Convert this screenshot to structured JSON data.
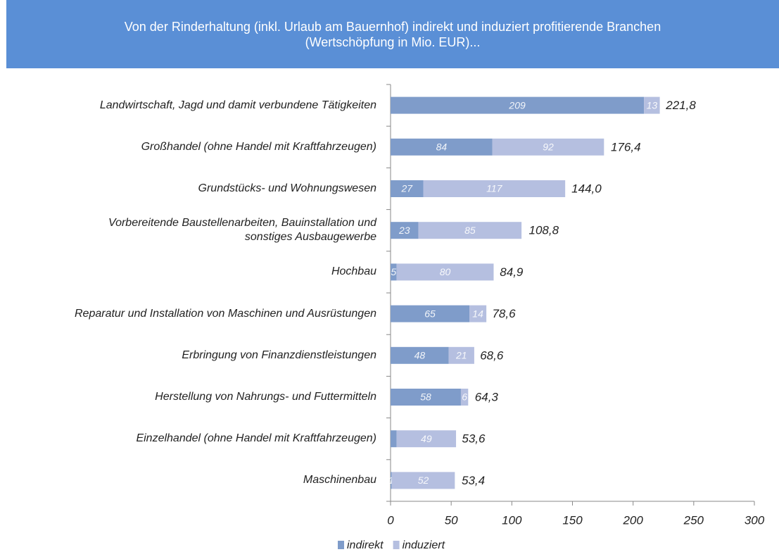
{
  "chart_data": {
    "type": "stacked_hbar",
    "title": "Von der Rinderhaltung (inkl. Urlaub am Bauernhof) indirekt und induziert profitierende Branchen\n(Wertschöpfung in Mio. EUR)...",
    "categories": [
      "Landwirtschaft, Jagd und damit verbundene Tätigkeiten",
      "Großhandel (ohne Handel mit Kraftfahrzeugen)",
      "Grundstücks- und Wohnungswesen",
      "Vorbereitende Baustellenarbeiten, Bauinstallation und\nsonstiges Ausbaugewerbe",
      "Hochbau",
      "Reparatur und Installation von Maschinen und Ausrüstungen",
      "Erbringung von Finanzdienstleistungen",
      "Herstellung von Nahrungs- und Futtermitteln",
      "Einzelhandel (ohne Handel mit Kraftfahrzeugen)",
      "Maschinenbau"
    ],
    "series": [
      {
        "name": "indirekt",
        "color": "#7f9cca",
        "values": [
          209,
          84,
          27,
          23,
          5,
          65,
          48,
          58,
          5,
          1
        ],
        "value_labels": [
          "209",
          "84",
          "27",
          "23",
          "5",
          "65",
          "48",
          "58",
          null,
          "1"
        ]
      },
      {
        "name": "induziert",
        "color": "#b5bfe0",
        "values": [
          13,
          92,
          117,
          85,
          80,
          14,
          21,
          6,
          49,
          52
        ],
        "value_labels": [
          "13",
          "92",
          "117",
          "85",
          "80",
          "14",
          "21",
          "6",
          "49",
          "52"
        ]
      }
    ],
    "totals": [
      221.8,
      176.4,
      144.0,
      108.8,
      84.9,
      78.6,
      68.6,
      64.3,
      53.6,
      53.4
    ],
    "total_labels": [
      "221,8",
      "176,4",
      "144,0",
      "108,8",
      "84,9",
      "78,6",
      "68,6",
      "64,3",
      "53,6",
      "53,4"
    ],
    "xlim": [
      0,
      300
    ],
    "xticks": [
      0,
      50,
      100,
      150,
      200,
      250,
      300
    ],
    "legend": "bottom"
  }
}
